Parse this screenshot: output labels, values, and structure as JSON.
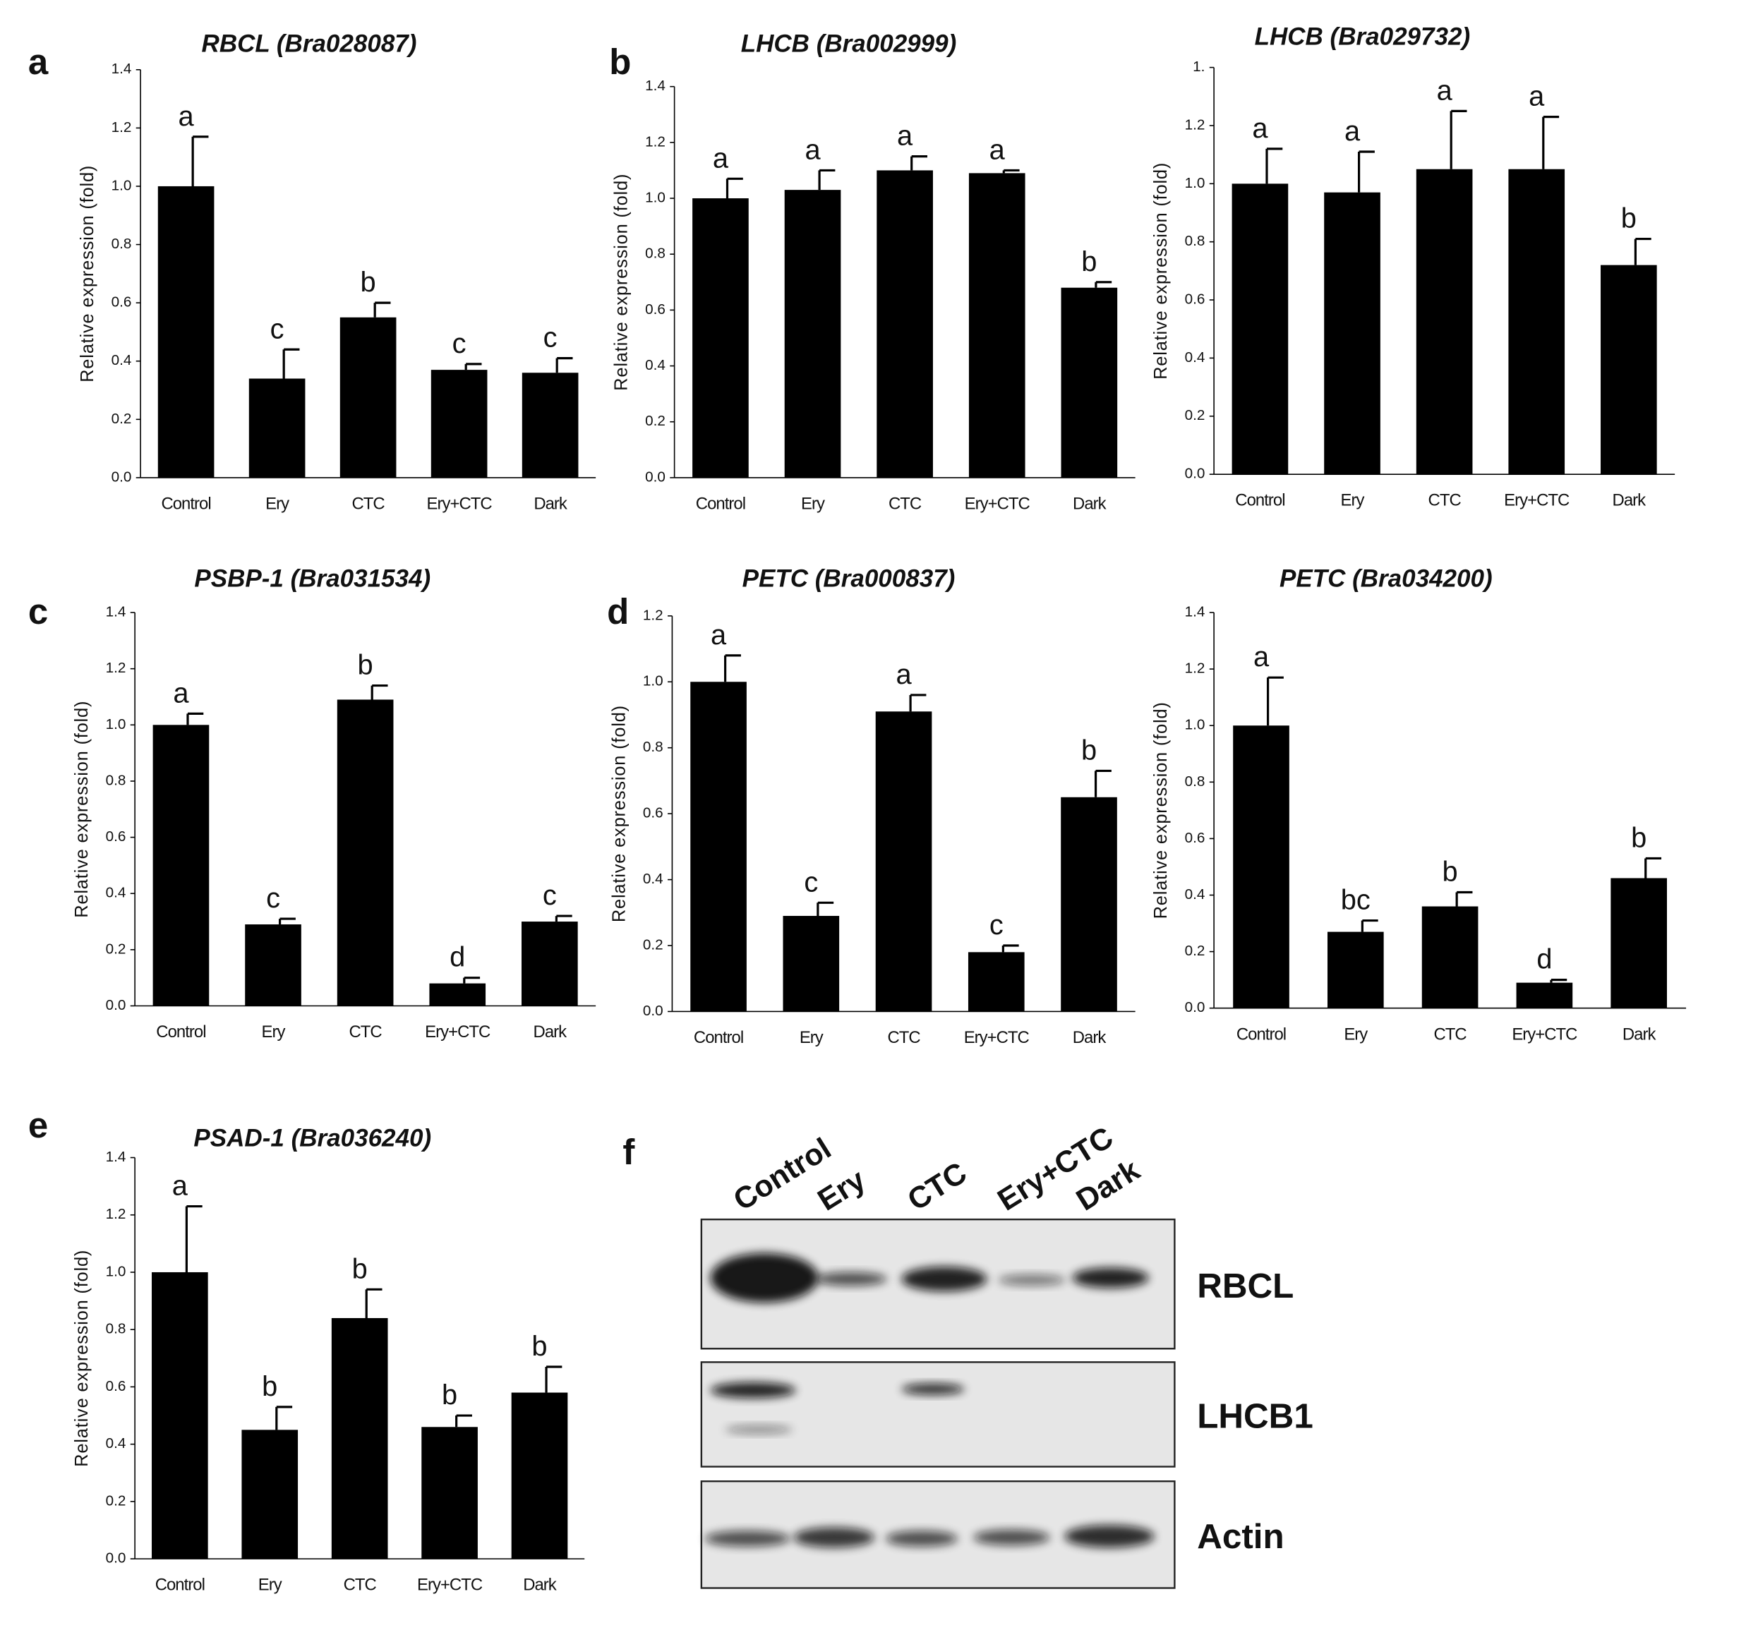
{
  "chart_data": [
    {
      "type": "bar",
      "panel": "a",
      "title": "RBCL (Bra028087)",
      "ylabel": "Relative expression (fold)",
      "color": "#000000",
      "categories": [
        "Control",
        "Ery",
        "CTC",
        "Ery+CTC",
        "Dark"
      ],
      "values": [
        1.0,
        0.34,
        0.55,
        0.37,
        0.36
      ],
      "errors": [
        0.17,
        0.1,
        0.05,
        0.02,
        0.05
      ],
      "letters": [
        "a",
        "c",
        "b",
        "c",
        "c"
      ],
      "ylim": [
        0,
        1.4
      ],
      "yticks": [
        {
          "value": 0,
          "label": "0.0"
        },
        0.2,
        0.4,
        0.6,
        0.8,
        {
          "value": 1,
          "label": "1.0"
        },
        1.2,
        1.4
      ]
    },
    {
      "type": "bar",
      "panel": "b",
      "title": "LHCB (Bra002999)",
      "ylabel": "Relative expression (fold)",
      "color": "#000000",
      "categories": [
        "Control",
        "Ery",
        "CTC",
        "Ery+CTC",
        "Dark"
      ],
      "values": [
        1.0,
        1.03,
        1.1,
        1.09,
        0.68
      ],
      "errors": [
        0.07,
        0.07,
        0.05,
        0.01,
        0.02
      ],
      "letters": [
        "a",
        "a",
        "a",
        "a",
        "b"
      ],
      "ylim": [
        0,
        1.4
      ],
      "yticks": [
        {
          "value": 0,
          "label": "0.0"
        },
        0.2,
        0.4,
        0.6,
        0.8,
        {
          "value": 1,
          "label": "1.0"
        },
        1.2,
        1.4
      ]
    },
    {
      "type": "bar",
      "title": "LHCB (Bra029732)",
      "ylabel": "Relative expression (fold)",
      "color": "#000000",
      "categories": [
        "Control",
        "Ery",
        "CTC",
        "Ery+CTC",
        "Dark"
      ],
      "values": [
        1.0,
        0.97,
        1.05,
        1.05,
        0.72
      ],
      "errors": [
        0.12,
        0.14,
        0.2,
        0.18,
        0.09
      ],
      "letters": [
        "a",
        "a",
        "a",
        "a",
        "b"
      ],
      "ylim": [
        0,
        1.4
      ],
      "yticks": [
        {
          "value": 0,
          "label": "0.0"
        },
        0.2,
        0.4,
        0.6,
        0.8,
        {
          "value": 1,
          "label": "1.0"
        },
        1.2,
        {
          "value": 1.4,
          "label": "1."
        }
      ]
    },
    {
      "type": "bar",
      "panel": "c",
      "title": "PSBP-1 (Bra031534)",
      "ylabel": "Relative expression (fold)",
      "color": "#000000",
      "categories": [
        "Control",
        "Ery",
        "CTC",
        "Ery+CTC",
        "Dark"
      ],
      "values": [
        1.0,
        0.29,
        1.09,
        0.08,
        0.3
      ],
      "errors": [
        0.04,
        0.02,
        0.05,
        0.02,
        0.02
      ],
      "letters": [
        "a",
        "c",
        "b",
        "d",
        "c"
      ],
      "ylim": [
        0,
        1.4
      ],
      "yticks": [
        {
          "value": 0,
          "label": "0.0"
        },
        0.2,
        0.4,
        0.6,
        0.8,
        {
          "value": 1,
          "label": "1.0"
        },
        1.2,
        1.4
      ]
    },
    {
      "type": "bar",
      "panel": "d",
      "title": "PETC (Bra000837)",
      "ylabel": "Relative expression (fold)",
      "color": "#000000",
      "categories": [
        "Control",
        "Ery",
        "CTC",
        "Ery+CTC",
        "Dark"
      ],
      "values": [
        1.0,
        0.29,
        0.91,
        0.18,
        0.65
      ],
      "errors": [
        0.08,
        0.04,
        0.05,
        0.02,
        0.08
      ],
      "letters": [
        "a",
        "c",
        "a",
        "c",
        "b"
      ],
      "ylim": [
        0,
        1.2
      ],
      "yticks": [
        {
          "value": 0,
          "label": "0.0"
        },
        0.2,
        0.4,
        0.6,
        0.8,
        {
          "value": 1,
          "label": "1.0"
        },
        1.2
      ]
    },
    {
      "type": "bar",
      "title": "PETC (Bra034200)",
      "ylabel": "Relative expression (fold)",
      "color": "#000000",
      "categories": [
        "Control",
        "Ery",
        "CTC",
        "Ery+CTC",
        "Dark"
      ],
      "values": [
        1.0,
        0.27,
        0.36,
        0.09,
        0.46
      ],
      "errors": [
        0.17,
        0.04,
        0.05,
        0.01,
        0.07
      ],
      "letters": [
        "a",
        "bc",
        "b",
        "d",
        "b"
      ],
      "ylim": [
        0,
        1.4
      ],
      "yticks": [
        {
          "value": 0,
          "label": "0.0"
        },
        0.2,
        0.4,
        0.6,
        0.8,
        {
          "value": 1,
          "label": "1.0"
        },
        1.2,
        1.4
      ]
    },
    {
      "type": "bar",
      "panel": "e",
      "title": "PSAD-1 (Bra036240)",
      "ylabel": "Relative expression (fold)",
      "color": "#000000",
      "categories": [
        "Control",
        "Ery",
        "CTC",
        "Ery+CTC",
        "Dark"
      ],
      "values": [
        1.0,
        0.45,
        0.84,
        0.46,
        0.58
      ],
      "errors": [
        0.23,
        0.08,
        0.1,
        0.04,
        0.09
      ],
      "letters": [
        "a",
        "b",
        "b",
        "b",
        "b"
      ],
      "ylim": [
        0,
        1.4
      ],
      "yticks": [
        {
          "value": 0,
          "label": "0.0"
        },
        0.2,
        0.4,
        0.6,
        0.8,
        {
          "value": 1,
          "label": "1.0"
        },
        1.2,
        1.4
      ]
    }
  ],
  "blot": {
    "panel": "f",
    "lanes": [
      "Control",
      "Ery",
      "CTC",
      "Ery+CTC",
      "Dark"
    ],
    "rows": [
      "RBCL",
      "LHCB1",
      "Actin"
    ]
  }
}
